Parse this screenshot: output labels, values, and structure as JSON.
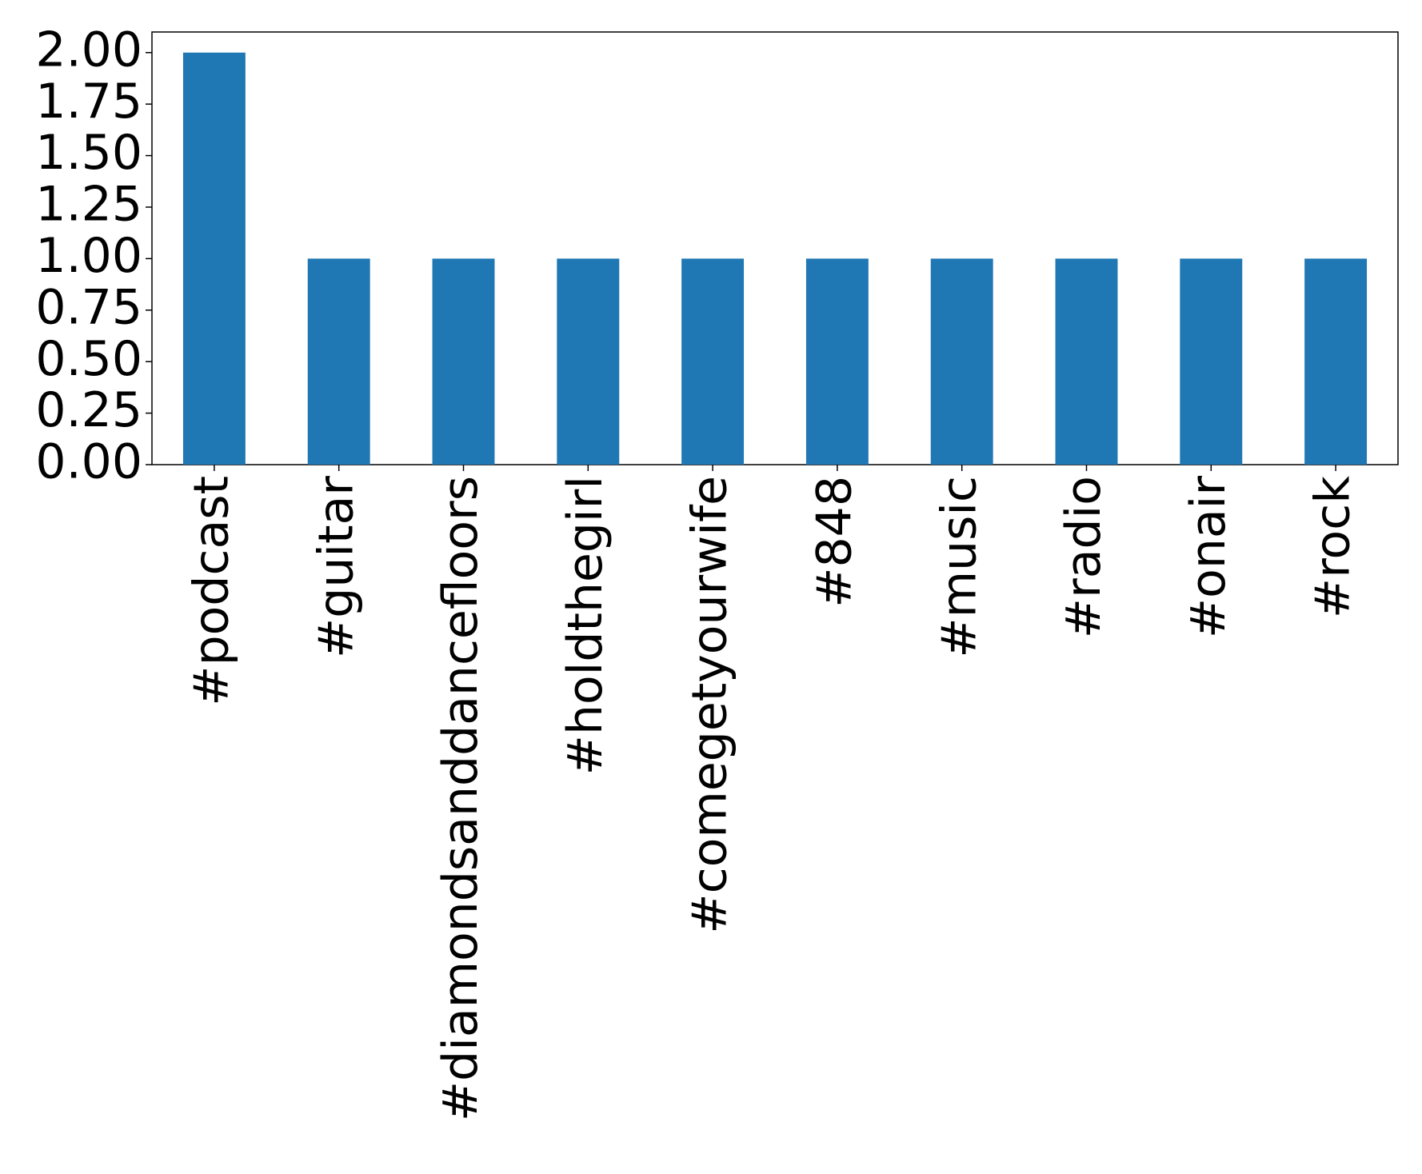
{
  "chart_data": {
    "type": "bar",
    "categories": [
      "#podcast",
      "#guitar",
      "#diamondsanddancefloors",
      "#holdthegirl",
      "#comegetyourwife",
      "#848",
      "#music",
      "#radio",
      "#onair",
      "#rock"
    ],
    "values": [
      2,
      1,
      1,
      1,
      1,
      1,
      1,
      1,
      1,
      1
    ],
    "color": "#1f77b4",
    "ylim": [
      0,
      2.1
    ],
    "yticks": [
      {
        "value": 0,
        "label": "0.00"
      },
      {
        "value": 0.25,
        "label": "0.25"
      },
      {
        "value": 0.5,
        "label": "0.50"
      },
      {
        "value": 0.75,
        "label": "0.75"
      },
      {
        "value": 1,
        "label": "1.00"
      },
      {
        "value": 1.25,
        "label": "1.25"
      },
      {
        "value": 1.5,
        "label": "1.50"
      },
      {
        "value": 1.75,
        "label": "1.75"
      },
      {
        "value": 2,
        "label": "2.00"
      }
    ],
    "grid": false
  }
}
